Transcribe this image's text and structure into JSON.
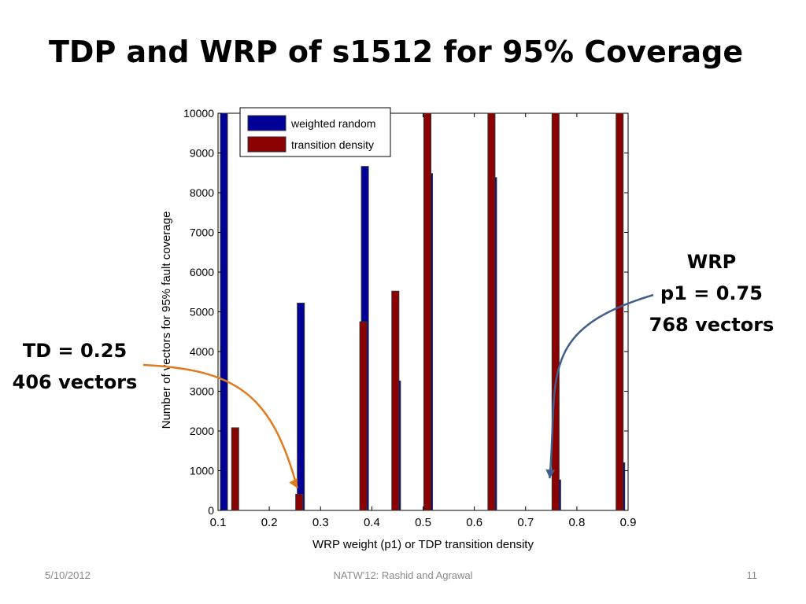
{
  "slide": {
    "title": "TDP and WRP of s1512 for 95% Coverage",
    "footer_date": "5/10/2012",
    "footer_center": "NATW'12: Rashid and Agrawal",
    "page_number": "11"
  },
  "callouts": {
    "left": {
      "line1": "TD = 0.25",
      "line2": "406 vectors",
      "arrow_color": "#e07a1f",
      "target": {
        "x": 0.25,
        "y": 406
      }
    },
    "right": {
      "line1": "WRP",
      "line2": "p1 = 0.75",
      "line3": "768 vectors",
      "arrow_color": "#3f5f8a",
      "target": {
        "x": 0.75,
        "y": 768
      }
    }
  },
  "chart_data": {
    "type": "bar",
    "xlabel": "WRP weight (p1) or TDP transition density",
    "ylabel": "Number of vectors for 95% fault coverage",
    "xlim": [
      0.1,
      0.9
    ],
    "ylim": [
      0,
      10000
    ],
    "xticks": [
      "0.1",
      "0.2",
      "0.3",
      "0.4",
      "0.5",
      "0.6",
      "0.7",
      "0.8",
      "0.9"
    ],
    "yticks": [
      "0",
      "1000",
      "2000",
      "3000",
      "4000",
      "5000",
      "6000",
      "7000",
      "8000",
      "9000",
      "10000"
    ],
    "legend_position": "top-left",
    "grid": false,
    "series": [
      {
        "name": "weighted random",
        "color": "#000099",
        "x": [
          0.1,
          0.25,
          0.375,
          0.4375,
          0.5,
          0.625,
          0.75,
          0.875
        ],
        "values": [
          10000,
          5220,
          8660,
          3260,
          8480,
          8380,
          768,
          1200
        ]
      },
      {
        "name": "transition density",
        "color": "#8b0000",
        "x": [
          0.125,
          0.25,
          0.375,
          0.4375,
          0.5,
          0.625,
          0.75,
          0.875
        ],
        "values": [
          2080,
          406,
          4750,
          5520,
          10000,
          10000,
          10000,
          10000
        ]
      }
    ]
  }
}
